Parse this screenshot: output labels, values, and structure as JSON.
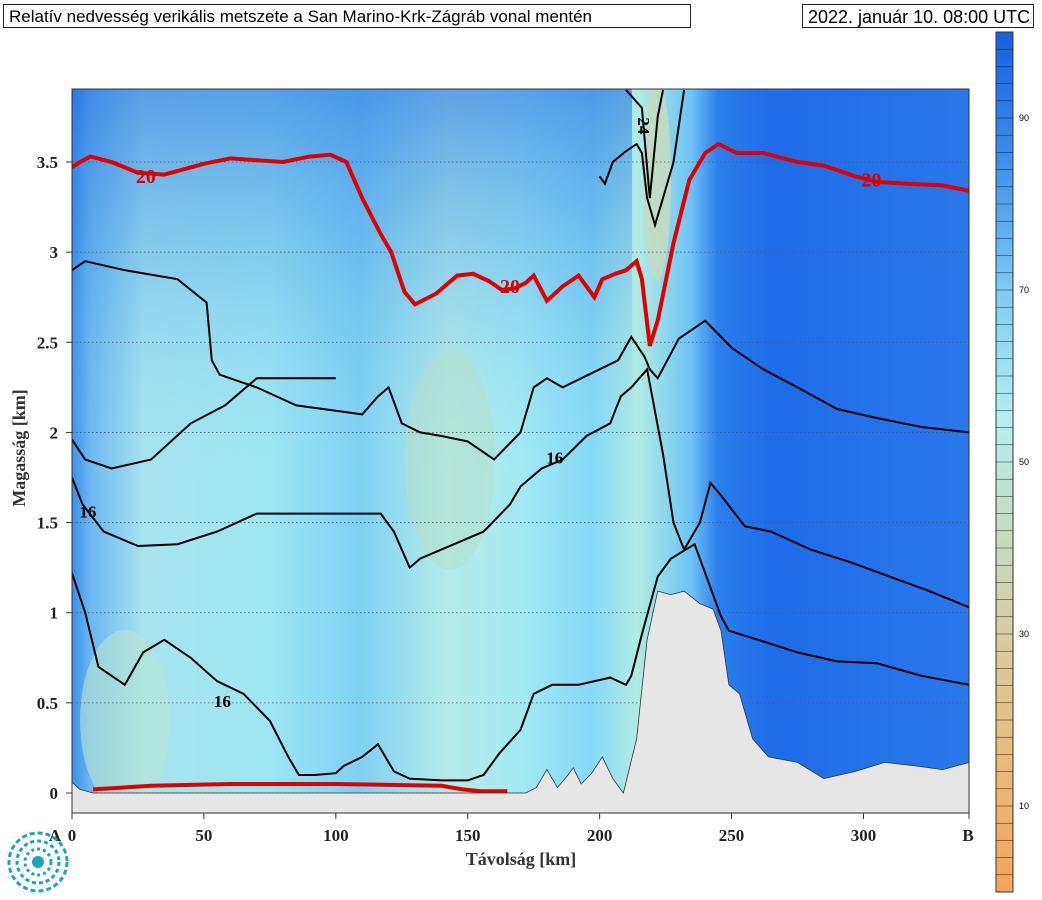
{
  "header": {
    "title": "Relatív nedvesség verikális metszete a San Marino-Krk-Zágráb vonal mentén",
    "timestamp": "2022. január 10. 08:00 UTC"
  },
  "chart_data": {
    "type": "contour_cross_section",
    "xlabel": "Távolság [km]",
    "ylabel": "Magasság [km]",
    "xlim": [
      0,
      340
    ],
    "ylim": [
      0,
      3.9
    ],
    "x_ticks": [
      0,
      50,
      100,
      150,
      200,
      250,
      300
    ],
    "y_ticks": [
      0,
      0.5,
      1,
      1.5,
      2,
      2.5,
      3,
      3.5
    ],
    "x_tick_labels": [
      "0",
      "50",
      "100",
      "150",
      "200",
      "250",
      "300"
    ],
    "y_tick_labels": [
      "0",
      "0.5",
      "1",
      "1.5",
      "2",
      "2.5",
      "3",
      "3.5"
    ],
    "endpoint_labels": [
      "A",
      "B"
    ],
    "grid": "horizontal dotted",
    "colorbar": {
      "ticks": [
        10,
        30,
        50,
        70,
        90
      ],
      "tick_labels": [
        "10",
        "30",
        "50",
        "70",
        "90"
      ],
      "range": [
        0,
        100
      ]
    },
    "contour_labels": [
      {
        "text": "20",
        "x": 28,
        "y": 3.41,
        "color": "red"
      },
      {
        "text": "20",
        "x": 166,
        "y": 2.8,
        "color": "red"
      },
      {
        "text": "20",
        "x": 303,
        "y": 3.39,
        "color": "red"
      },
      {
        "text": "24",
        "x": 216,
        "y": 3.7,
        "color": "black"
      },
      {
        "text": "16",
        "x": 183,
        "y": 1.85,
        "color": "black"
      },
      {
        "text": "16",
        "x": 6,
        "y": 1.55,
        "color": "black"
      },
      {
        "text": "16",
        "x": 57,
        "y": 0.5,
        "color": "black"
      }
    ],
    "terrain": [
      [
        0,
        0.06
      ],
      [
        3,
        0.02
      ],
      [
        8,
        0.0
      ],
      [
        120,
        0.0
      ],
      [
        172,
        0.0
      ],
      [
        176,
        0.03
      ],
      [
        180,
        0.13
      ],
      [
        184,
        0.03
      ],
      [
        188,
        0.1
      ],
      [
        190,
        0.14
      ],
      [
        193,
        0.05
      ],
      [
        197,
        0.11
      ],
      [
        201,
        0.2
      ],
      [
        205,
        0.08
      ],
      [
        209,
        0.0
      ],
      [
        214,
        0.3
      ],
      [
        218,
        0.85
      ],
      [
        222,
        1.12
      ],
      [
        227,
        1.1
      ],
      [
        232,
        1.12
      ],
      [
        238,
        1.05
      ],
      [
        243,
        1.02
      ],
      [
        246,
        0.9
      ],
      [
        249,
        0.6
      ],
      [
        253,
        0.55
      ],
      [
        258,
        0.3
      ],
      [
        264,
        0.2
      ],
      [
        275,
        0.17
      ],
      [
        285,
        0.08
      ],
      [
        297,
        0.12
      ],
      [
        308,
        0.17
      ],
      [
        320,
        0.15
      ],
      [
        330,
        0.13
      ],
      [
        340,
        0.17
      ]
    ],
    "red_contour_upper": [
      [
        0,
        3.47
      ],
      [
        3,
        3.5
      ],
      [
        7,
        3.53
      ],
      [
        15,
        3.5
      ],
      [
        25,
        3.44
      ],
      [
        35,
        3.43
      ],
      [
        50,
        3.49
      ],
      [
        60,
        3.52
      ],
      [
        70,
        3.51
      ],
      [
        80,
        3.5
      ],
      [
        90,
        3.53
      ],
      [
        98,
        3.54
      ],
      [
        104,
        3.5
      ],
      [
        110,
        3.3
      ],
      [
        117,
        3.1
      ],
      [
        121,
        3.0
      ],
      [
        126,
        2.78
      ],
      [
        130,
        2.71
      ],
      [
        138,
        2.77
      ],
      [
        146,
        2.87
      ],
      [
        152,
        2.88
      ],
      [
        158,
        2.84
      ],
      [
        163,
        2.79
      ],
      [
        168,
        2.8
      ],
      [
        172,
        2.83
      ],
      [
        175,
        2.87
      ],
      [
        180,
        2.73
      ],
      [
        186,
        2.81
      ],
      [
        192,
        2.87
      ],
      [
        198,
        2.75
      ],
      [
        201,
        2.85
      ],
      [
        206,
        2.88
      ],
      [
        210,
        2.9
      ],
      [
        214,
        2.95
      ],
      [
        216,
        2.85
      ],
      [
        219,
        2.48
      ],
      [
        222,
        2.62
      ],
      [
        228,
        3.05
      ],
      [
        234,
        3.4
      ],
      [
        240,
        3.55
      ],
      [
        245,
        3.6
      ],
      [
        252,
        3.55
      ],
      [
        262,
        3.55
      ],
      [
        275,
        3.5
      ],
      [
        285,
        3.48
      ],
      [
        297,
        3.42
      ],
      [
        305,
        3.39
      ],
      [
        316,
        3.38
      ],
      [
        330,
        3.37
      ],
      [
        340,
        3.34
      ]
    ],
    "red_contour_surface": [
      [
        8,
        0.02
      ],
      [
        30,
        0.04
      ],
      [
        60,
        0.05
      ],
      [
        100,
        0.05
      ],
      [
        140,
        0.04
      ],
      [
        148,
        0.02
      ],
      [
        155,
        0.01
      ],
      [
        165,
        0.01
      ]
    ],
    "black_contours": [
      [
        [
          0,
          2.9
        ],
        [
          5,
          2.95
        ],
        [
          20,
          2.9
        ],
        [
          40,
          2.85
        ],
        [
          51,
          2.72
        ],
        [
          53,
          2.4
        ],
        [
          56,
          2.32
        ],
        [
          70,
          2.25
        ],
        [
          85,
          2.15
        ],
        [
          100,
          2.12
        ],
        [
          110,
          2.1
        ],
        [
          116,
          2.2
        ],
        [
          120,
          2.25
        ],
        [
          125,
          2.05
        ],
        [
          132,
          2.0
        ],
        [
          140,
          1.98
        ],
        [
          150,
          1.95
        ],
        [
          160,
          1.85
        ],
        [
          170,
          2.0
        ],
        [
          175,
          2.25
        ],
        [
          180,
          2.3
        ],
        [
          186,
          2.25
        ],
        [
          193,
          2.3
        ],
        [
          200,
          2.35
        ],
        [
          207,
          2.4
        ],
        [
          212,
          2.53
        ],
        [
          217,
          2.42
        ],
        [
          219,
          2.35
        ],
        [
          222,
          2.3
        ],
        [
          230,
          2.52
        ],
        [
          240,
          2.62
        ],
        [
          250,
          2.47
        ],
        [
          262,
          2.35
        ],
        [
          275,
          2.25
        ],
        [
          290,
          2.13
        ],
        [
          305,
          2.08
        ],
        [
          322,
          2.03
        ],
        [
          340,
          2.0
        ]
      ],
      [
        [
          0,
          1.75
        ],
        [
          4,
          1.6
        ],
        [
          12,
          1.45
        ],
        [
          25,
          1.37
        ],
        [
          40,
          1.38
        ],
        [
          55,
          1.45
        ],
        [
          70,
          1.55
        ],
        [
          90,
          1.55
        ],
        [
          105,
          1.55
        ],
        [
          117,
          1.55
        ],
        [
          122,
          1.45
        ],
        [
          128,
          1.25
        ],
        [
          132,
          1.3
        ],
        [
          140,
          1.35
        ],
        [
          148,
          1.4
        ],
        [
          156,
          1.45
        ],
        [
          166,
          1.6
        ],
        [
          170,
          1.7
        ],
        [
          178,
          1.8
        ],
        [
          186,
          1.85
        ],
        [
          195,
          1.98
        ],
        [
          204,
          2.05
        ],
        [
          208,
          2.2
        ],
        [
          212,
          2.25
        ],
        [
          218,
          2.35
        ],
        [
          224,
          1.88
        ],
        [
          228,
          1.5
        ],
        [
          232,
          1.35
        ],
        [
          238,
          1.5
        ],
        [
          242,
          1.72
        ],
        [
          246,
          1.65
        ],
        [
          255,
          1.48
        ],
        [
          265,
          1.45
        ],
        [
          280,
          1.35
        ],
        [
          295,
          1.28
        ],
        [
          310,
          1.2
        ],
        [
          325,
          1.12
        ],
        [
          340,
          1.03
        ]
      ],
      [
        [
          0,
          1.22
        ],
        [
          5,
          1.0
        ],
        [
          10,
          0.7
        ],
        [
          20,
          0.6
        ],
        [
          27,
          0.78
        ],
        [
          35,
          0.85
        ],
        [
          45,
          0.75
        ],
        [
          55,
          0.62
        ],
        [
          65,
          0.55
        ],
        [
          75,
          0.4
        ],
        [
          82,
          0.2
        ],
        [
          86,
          0.1
        ],
        [
          92,
          0.1
        ],
        [
          100,
          0.11
        ],
        [
          103,
          0.15
        ],
        [
          110,
          0.2
        ],
        [
          116,
          0.27
        ],
        [
          122,
          0.12
        ],
        [
          128,
          0.08
        ],
        [
          140,
          0.07
        ],
        [
          150,
          0.07
        ],
        [
          156,
          0.1
        ],
        [
          162,
          0.22
        ],
        [
          170,
          0.35
        ],
        [
          175,
          0.55
        ],
        [
          182,
          0.6
        ],
        [
          192,
          0.6
        ],
        [
          204,
          0.64
        ],
        [
          210,
          0.6
        ],
        [
          212,
          0.65
        ],
        [
          216,
          0.88
        ],
        [
          222,
          1.2
        ],
        [
          227,
          1.3
        ],
        [
          236,
          1.38
        ],
        [
          246,
          0.98
        ],
        [
          249,
          0.9
        ],
        [
          260,
          0.85
        ],
        [
          275,
          0.78
        ],
        [
          290,
          0.73
        ],
        [
          305,
          0.72
        ],
        [
          322,
          0.65
        ],
        [
          340,
          0.6
        ]
      ],
      [
        [
          200,
          3.42
        ],
        [
          202,
          3.38
        ],
        [
          205,
          3.5
        ],
        [
          210,
          3.56
        ],
        [
          214,
          3.6
        ],
        [
          216,
          3.55
        ],
        [
          218,
          3.3
        ],
        [
          221,
          3.15
        ],
        [
          224,
          3.3
        ],
        [
          228,
          3.5
        ],
        [
          232,
          3.9
        ]
      ],
      [
        [
          0,
          1.96
        ],
        [
          5,
          1.85
        ],
        [
          15,
          1.8
        ],
        [
          30,
          1.85
        ],
        [
          45,
          2.05
        ],
        [
          58,
          2.15
        ],
        [
          70,
          2.3
        ],
        [
          90,
          2.3
        ],
        [
          100,
          2.3
        ]
      ],
      [
        [
          210,
          3.9
        ],
        [
          216,
          3.8
        ],
        [
          219,
          3.3
        ],
        [
          222,
          3.75
        ],
        [
          224,
          3.9
        ]
      ]
    ]
  }
}
